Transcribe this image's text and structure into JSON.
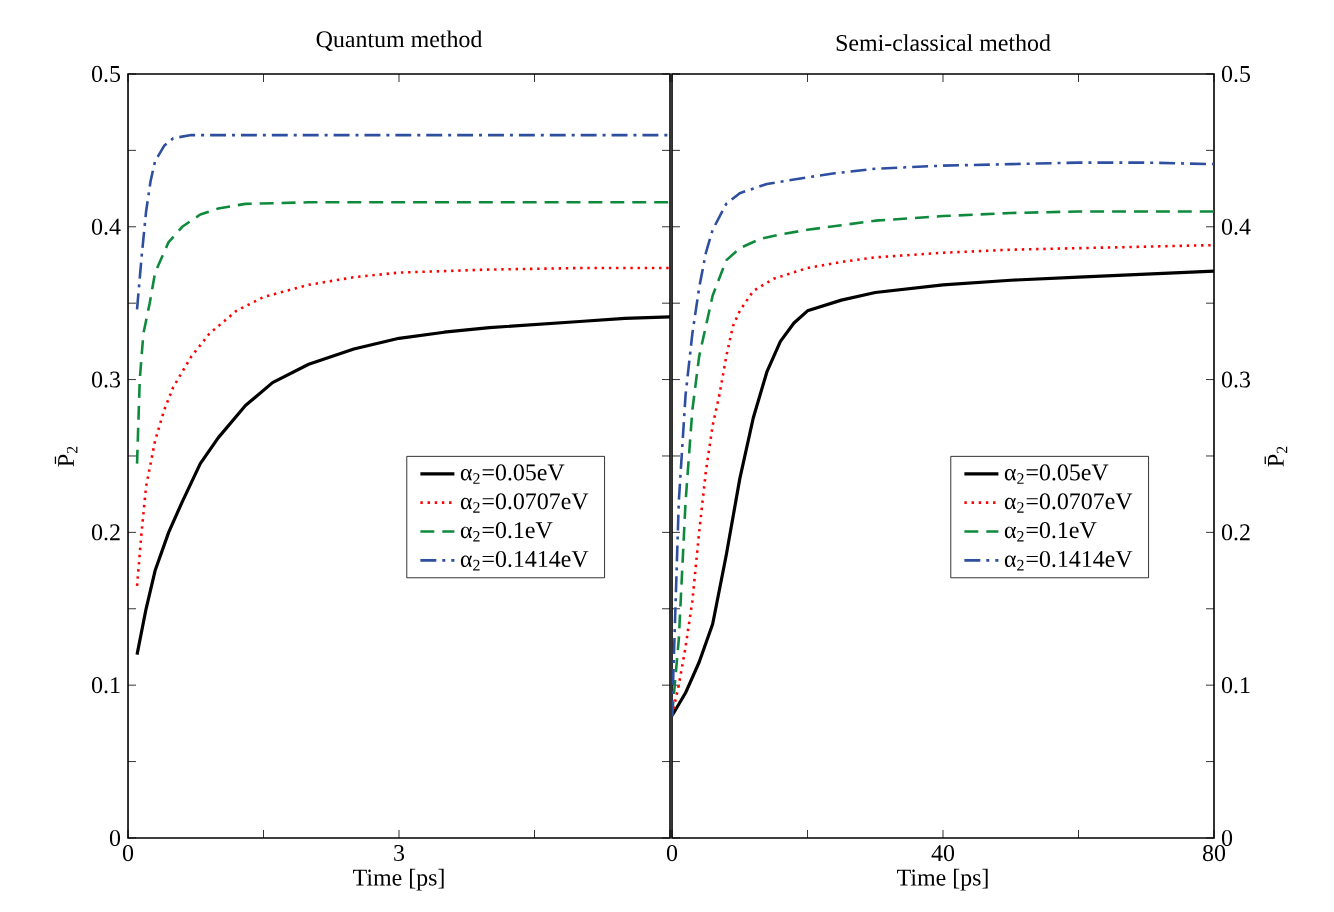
{
  "chart_data": [
    {
      "type": "line",
      "title": "Quantum method",
      "xlabel": "Time [ps]",
      "ylabel": "P̄$_{2}$",
      "xlim": [
        0,
        6
      ],
      "xticks": [
        0,
        {
          "value": 1.5,
          "label": null
        },
        3,
        {
          "value": 4.5,
          "label": null
        },
        {
          "value": 6,
          "label": null
        }
      ],
      "ylim": [
        0,
        0.5
      ],
      "yticks": [
        0,
        {
          "value": 0.05,
          "label": null
        },
        0.1,
        {
          "value": 0.15,
          "label": null
        },
        0.2,
        {
          "value": 0.25,
          "label": null
        },
        0.3,
        {
          "value": 0.35,
          "label": null
        },
        0.4,
        {
          "value": 0.45,
          "label": null
        },
        0.5
      ],
      "legend": "right",
      "series": [
        {
          "name": "α$_{2}$=0.05eV",
          "color": "#000000",
          "line_style": "solid",
          "x": [
            0.1,
            0.2,
            0.3,
            0.45,
            0.6,
            0.8,
            1.0,
            1.3,
            1.6,
            2.0,
            2.5,
            3.0,
            3.5,
            4.0,
            4.5,
            5.0,
            5.5,
            6.0
          ],
          "values": [
            0.12,
            0.15,
            0.175,
            0.2,
            0.22,
            0.245,
            0.262,
            0.283,
            0.298,
            0.31,
            0.32,
            0.327,
            0.331,
            0.334,
            0.336,
            0.338,
            0.34,
            0.341
          ]
        },
        {
          "name": "α$_{2}$=0.0707eV",
          "color": "#ff0000",
          "line_style": "dotted",
          "x": [
            0.1,
            0.15,
            0.2,
            0.3,
            0.4,
            0.5,
            0.7,
            0.9,
            1.2,
            1.5,
            2.0,
            2.5,
            3.0,
            4.0,
            5.0,
            6.0
          ],
          "values": [
            0.165,
            0.2,
            0.23,
            0.26,
            0.28,
            0.295,
            0.315,
            0.33,
            0.345,
            0.354,
            0.362,
            0.367,
            0.37,
            0.372,
            0.373,
            0.373
          ]
        },
        {
          "name": "α$_{2}$=0.1eV",
          "color": "#0f8a3c",
          "line_style": "dashed",
          "x": [
            0.1,
            0.13,
            0.17,
            0.24,
            0.3,
            0.45,
            0.6,
            0.8,
            1.0,
            1.3,
            2.0,
            6.0
          ],
          "values": [
            0.245,
            0.3,
            0.33,
            0.35,
            0.37,
            0.39,
            0.4,
            0.408,
            0.412,
            0.415,
            0.416,
            0.416
          ]
        },
        {
          "name": "α$_{2}$=0.1414eV",
          "color": "#2e4fa0",
          "line_style": "dashdot",
          "x": [
            0.1,
            0.15,
            0.2,
            0.25,
            0.3,
            0.4,
            0.5,
            0.7,
            6.0
          ],
          "values": [
            0.346,
            0.38,
            0.41,
            0.43,
            0.443,
            0.453,
            0.458,
            0.46,
            0.46
          ]
        }
      ]
    },
    {
      "type": "line",
      "title": "Semi-classical method",
      "xlabel": "Time [ps]",
      "ylabel": "P̄$_{2}$",
      "xlim": [
        0,
        80
      ],
      "xticks": [
        0,
        {
          "value": 20,
          "label": null
        },
        40,
        {
          "value": 60,
          "label": null
        },
        80
      ],
      "ylim": [
        0,
        0.5
      ],
      "yticks": [
        0,
        {
          "value": 0.05,
          "label": null
        },
        0.1,
        {
          "value": 0.15,
          "label": null
        },
        0.2,
        {
          "value": 0.25,
          "label": null
        },
        0.3,
        {
          "value": 0.35,
          "label": null
        },
        0.4,
        {
          "value": 0.45,
          "label": null
        },
        0.5
      ],
      "legend": "right",
      "series": [
        {
          "name": "α$_{2}$=0.05eV",
          "color": "#000000",
          "line_style": "solid",
          "x": [
            0,
            2,
            4,
            6,
            8,
            10,
            12,
            14,
            16,
            18,
            20,
            25,
            30,
            40,
            50,
            60,
            70,
            80
          ],
          "values": [
            0.08,
            0.095,
            0.115,
            0.14,
            0.185,
            0.235,
            0.275,
            0.305,
            0.325,
            0.337,
            0.345,
            0.352,
            0.357,
            0.362,
            0.365,
            0.367,
            0.369,
            0.371
          ]
        },
        {
          "name": "α$_{2}$=0.0707eV",
          "color": "#ff0000",
          "line_style": "dotted",
          "x": [
            0,
            1,
            2,
            3,
            4,
            5,
            6,
            7,
            8,
            9,
            10,
            12,
            15,
            20,
            25,
            30,
            40,
            50,
            60,
            70,
            80
          ],
          "values": [
            0.08,
            0.1,
            0.125,
            0.155,
            0.2,
            0.24,
            0.27,
            0.29,
            0.315,
            0.335,
            0.345,
            0.358,
            0.366,
            0.373,
            0.377,
            0.38,
            0.383,
            0.385,
            0.386,
            0.387,
            0.388
          ]
        },
        {
          "name": "α$_{2}$=0.1eV",
          "color": "#0f8a3c",
          "line_style": "dashed",
          "x": [
            0,
            1,
            2,
            3,
            4,
            5,
            6,
            8,
            10,
            13,
            16,
            20,
            25,
            30,
            40,
            50,
            60,
            70,
            80
          ],
          "values": [
            0.08,
            0.13,
            0.22,
            0.28,
            0.315,
            0.335,
            0.355,
            0.378,
            0.386,
            0.392,
            0.395,
            0.398,
            0.401,
            0.404,
            0.407,
            0.409,
            0.41,
            0.41,
            0.41
          ]
        },
        {
          "name": "α$_{2}$=0.1414eV",
          "color": "#2e4fa0",
          "line_style": "dashdot",
          "x": [
            0,
            1,
            2,
            3,
            4,
            5,
            6,
            8,
            10,
            14,
            18,
            24,
            30,
            40,
            50,
            60,
            70,
            80
          ],
          "values": [
            0.08,
            0.22,
            0.29,
            0.33,
            0.36,
            0.383,
            0.398,
            0.415,
            0.422,
            0.428,
            0.431,
            0.435,
            0.438,
            0.44,
            0.441,
            0.442,
            0.442,
            0.441
          ]
        }
      ]
    }
  ]
}
